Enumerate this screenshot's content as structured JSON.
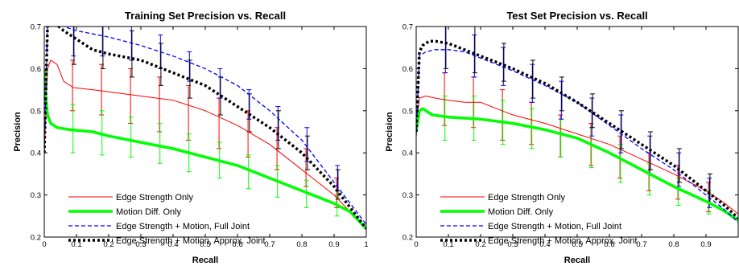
{
  "chart_data": [
    {
      "type": "line",
      "title": "Training Set Precision vs. Recall",
      "xlabel": "Recall",
      "ylabel": "Precision",
      "xlim": [
        0,
        1
      ],
      "ylim": [
        0.2,
        0.7
      ],
      "xticks": [
        "0",
        "0.1",
        "0.2",
        "0.3",
        "0.4",
        "0.5",
        "0.6",
        "0.7",
        "0.8",
        "0.9",
        "1"
      ],
      "yticks": [
        "0.2",
        "0.3",
        "0.4",
        "0.5",
        "0.6",
        "0.7"
      ],
      "legend_position": "bottom-left",
      "series": [
        {
          "name": "Edge Strength Only",
          "color": "#ff0000",
          "style": "solid-thin",
          "x": [
            0,
            0.01,
            0.02,
            0.04,
            0.06,
            0.09,
            0.15,
            0.2,
            0.3,
            0.4,
            0.5,
            0.6,
            0.7,
            0.8,
            0.9,
            0.95,
            1.0
          ],
          "y": [
            0.4,
            0.6,
            0.62,
            0.61,
            0.57,
            0.555,
            0.55,
            0.545,
            0.535,
            0.525,
            0.5,
            0.465,
            0.42,
            0.36,
            0.3,
            0.26,
            0.22
          ],
          "error_x": [
            0.09,
            0.18,
            0.27,
            0.36,
            0.45,
            0.545,
            0.635,
            0.725,
            0.815,
            0.91
          ],
          "error_lo": [
            0.5,
            0.49,
            0.47,
            0.45,
            0.43,
            0.41,
            0.39,
            0.36,
            0.32,
            0.27
          ],
          "error_hi": [
            0.62,
            0.61,
            0.6,
            0.58,
            0.56,
            0.53,
            0.5,
            0.46,
            0.41,
            0.34
          ]
        },
        {
          "name": "Motion Diff. Only",
          "color": "#00ff00",
          "style": "solid-thick",
          "x": [
            0,
            0.005,
            0.01,
            0.02,
            0.04,
            0.08,
            0.15,
            0.2,
            0.3,
            0.4,
            0.5,
            0.6,
            0.7,
            0.8,
            0.9,
            0.95,
            1.0
          ],
          "y": [
            0.6,
            0.53,
            0.49,
            0.47,
            0.46,
            0.455,
            0.45,
            0.44,
            0.425,
            0.41,
            0.39,
            0.37,
            0.34,
            0.31,
            0.28,
            0.26,
            0.22
          ],
          "error_x": [
            0.09,
            0.18,
            0.27,
            0.36,
            0.45,
            0.545,
            0.635,
            0.725,
            0.815,
            0.91
          ],
          "error_lo": [
            0.4,
            0.395,
            0.39,
            0.375,
            0.355,
            0.34,
            0.315,
            0.295,
            0.27,
            0.25
          ],
          "error_hi": [
            0.515,
            0.5,
            0.485,
            0.47,
            0.445,
            0.425,
            0.395,
            0.37,
            0.335,
            0.3
          ]
        },
        {
          "name": "Edge Strength + Motion, Full Joint",
          "color": "#0000ff",
          "style": "dashed",
          "x": [
            0,
            0.01,
            0.03,
            0.06,
            0.1,
            0.2,
            0.3,
            0.4,
            0.5,
            0.6,
            0.7,
            0.8,
            0.85,
            0.9,
            0.95,
            1.0
          ],
          "y": [
            0.4,
            0.7,
            0.71,
            0.7,
            0.69,
            0.675,
            0.655,
            0.63,
            0.6,
            0.56,
            0.5,
            0.43,
            0.38,
            0.33,
            0.28,
            0.23
          ],
          "error_x": [
            0.09,
            0.18,
            0.27,
            0.36,
            0.45,
            0.545,
            0.635,
            0.725,
            0.815,
            0.91
          ],
          "error_lo": [
            0.63,
            0.63,
            0.62,
            0.6,
            0.57,
            0.53,
            0.48,
            0.43,
            0.38,
            0.31
          ],
          "error_hi": [
            0.75,
            0.73,
            0.71,
            0.68,
            0.64,
            0.6,
            0.55,
            0.51,
            0.46,
            0.37
          ]
        },
        {
          "name": "Edge Strength + Motion, Approx. Joint",
          "color": "#000000",
          "style": "dotted-thick",
          "x": [
            0,
            0.01,
            0.03,
            0.06,
            0.1,
            0.15,
            0.2,
            0.3,
            0.4,
            0.5,
            0.6,
            0.7,
            0.8,
            0.9,
            0.95,
            1.0
          ],
          "y": [
            0.4,
            0.7,
            0.71,
            0.69,
            0.67,
            0.645,
            0.635,
            0.62,
            0.59,
            0.56,
            0.51,
            0.46,
            0.4,
            0.32,
            0.27,
            0.22
          ],
          "error_x": [
            0.09,
            0.18,
            0.27,
            0.36,
            0.45,
            0.545,
            0.635,
            0.725,
            0.815,
            0.91
          ],
          "error_lo": [
            0.61,
            0.6,
            0.58,
            0.56,
            0.53,
            0.49,
            0.45,
            0.41,
            0.36,
            0.29
          ],
          "error_hi": [
            0.73,
            0.71,
            0.69,
            0.66,
            0.62,
            0.58,
            0.54,
            0.5,
            0.44,
            0.36
          ]
        }
      ]
    },
    {
      "type": "line",
      "title": "Test Set Precision vs. Recall",
      "xlabel": "Recall",
      "ylabel": "Precision",
      "xlim": [
        0,
        1
      ],
      "ylim": [
        0.2,
        0.7
      ],
      "xticks": [
        "0",
        "0.1",
        "0.2",
        "0.3",
        "0.4",
        "0.5",
        "0.6",
        "0.7",
        "0.8",
        "0.9",
        ""
      ],
      "yticks": [
        "0.2",
        "0.3",
        "0.4",
        "0.5",
        "0.6",
        "0.7"
      ],
      "legend_position": "bottom-left",
      "series": [
        {
          "name": "Edge Strength Only",
          "color": "#ff0000",
          "style": "solid-thin",
          "x": [
            0,
            0.01,
            0.03,
            0.06,
            0.1,
            0.15,
            0.2,
            0.25,
            0.3,
            0.4,
            0.5,
            0.6,
            0.7,
            0.8,
            0.9,
            0.95,
            1.0
          ],
          "y": [
            0.46,
            0.53,
            0.535,
            0.53,
            0.525,
            0.52,
            0.52,
            0.505,
            0.49,
            0.47,
            0.445,
            0.42,
            0.385,
            0.35,
            0.31,
            0.285,
            0.255
          ],
          "error_x": [
            0.09,
            0.18,
            0.27,
            0.36,
            0.45,
            0.545,
            0.635,
            0.725,
            0.815,
            0.91
          ],
          "error_lo": [
            0.465,
            0.46,
            0.43,
            0.42,
            0.39,
            0.37,
            0.34,
            0.31,
            0.29,
            0.26
          ],
          "error_hi": [
            0.59,
            0.58,
            0.55,
            0.52,
            0.49,
            0.47,
            0.44,
            0.4,
            0.37,
            0.33
          ]
        },
        {
          "name": "Motion Diff. Only",
          "color": "#00ff00",
          "style": "solid-thick",
          "x": [
            0,
            0.01,
            0.02,
            0.05,
            0.1,
            0.2,
            0.3,
            0.4,
            0.5,
            0.6,
            0.7,
            0.8,
            0.9,
            0.95,
            1.0
          ],
          "y": [
            0.45,
            0.5,
            0.505,
            0.49,
            0.485,
            0.48,
            0.47,
            0.455,
            0.435,
            0.4,
            0.36,
            0.32,
            0.285,
            0.265,
            0.24
          ],
          "error_x": [
            0.09,
            0.18,
            0.27,
            0.36,
            0.45,
            0.545,
            0.635,
            0.725,
            0.815,
            0.91
          ],
          "error_lo": [
            0.43,
            0.43,
            0.42,
            0.41,
            0.39,
            0.365,
            0.33,
            0.3,
            0.275,
            0.255
          ],
          "error_hi": [
            0.535,
            0.535,
            0.525,
            0.505,
            0.48,
            0.46,
            0.42,
            0.375,
            0.34,
            0.31
          ]
        },
        {
          "name": "Edge Strength + Motion, Full Joint",
          "color": "#0000ff",
          "style": "dashed",
          "x": [
            0,
            0.01,
            0.03,
            0.06,
            0.1,
            0.15,
            0.2,
            0.3,
            0.4,
            0.5,
            0.6,
            0.7,
            0.8,
            0.9,
            0.95,
            1.0
          ],
          "y": [
            0.44,
            0.63,
            0.64,
            0.645,
            0.645,
            0.64,
            0.625,
            0.595,
            0.56,
            0.52,
            0.465,
            0.41,
            0.36,
            0.3,
            0.27,
            0.235
          ],
          "error_x": [
            0.09,
            0.18,
            0.27,
            0.36,
            0.45,
            0.545,
            0.635,
            0.725,
            0.815,
            0.91
          ],
          "error_lo": [
            0.59,
            0.58,
            0.56,
            0.52,
            0.48,
            0.44,
            0.4,
            0.35,
            0.32,
            0.27
          ],
          "error_hi": [
            0.7,
            0.68,
            0.65,
            0.61,
            0.57,
            0.53,
            0.49,
            0.44,
            0.4,
            0.34
          ]
        },
        {
          "name": "Edge Strength + Motion, Approx. Joint",
          "color": "#000000",
          "style": "dotted-thick",
          "x": [
            0,
            0.01,
            0.02,
            0.04,
            0.06,
            0.1,
            0.15,
            0.2,
            0.3,
            0.4,
            0.5,
            0.6,
            0.7,
            0.8,
            0.9,
            0.95,
            1.0
          ],
          "y": [
            0.45,
            0.64,
            0.655,
            0.665,
            0.665,
            0.66,
            0.645,
            0.63,
            0.6,
            0.565,
            0.52,
            0.47,
            0.42,
            0.37,
            0.31,
            0.28,
            0.245
          ],
          "error_x": [
            0.09,
            0.18,
            0.27,
            0.36,
            0.45,
            0.545,
            0.635,
            0.725,
            0.815,
            0.91
          ],
          "error_lo": [
            0.6,
            0.59,
            0.57,
            0.53,
            0.5,
            0.46,
            0.41,
            0.36,
            0.33,
            0.28
          ],
          "error_hi": [
            0.71,
            0.7,
            0.66,
            0.62,
            0.58,
            0.54,
            0.5,
            0.45,
            0.41,
            0.35
          ]
        }
      ]
    }
  ]
}
